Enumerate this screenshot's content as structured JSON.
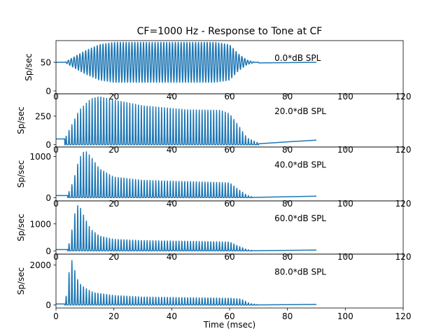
{
  "chart_data": {
    "type": "line",
    "title": "CF=1000 Hz - Response to Tone at CF",
    "xlabel": "Time (msec)",
    "ylabel": "Sp/sec",
    "xlim": [
      0,
      120
    ],
    "x_ticks": [
      0,
      20,
      40,
      60,
      80,
      100,
      120
    ],
    "series_color": "#1f77b4",
    "tone_frequency_hz": 1000,
    "panels": [
      {
        "annotation": "0.0*dB SPL",
        "ylim": [
          -5,
          88
        ],
        "y_ticks": [
          0,
          50
        ],
        "spont": 50,
        "mod": [
          {
            "t": 3,
            "v": 0
          },
          {
            "t": 5,
            "v": 6
          },
          {
            "t": 10,
            "v": 20
          },
          {
            "t": 15,
            "v": 31
          },
          {
            "t": 20,
            "v": 35
          },
          {
            "t": 55,
            "v": 35
          },
          {
            "t": 60,
            "v": 31
          },
          {
            "t": 63,
            "v": 15
          },
          {
            "t": 66,
            "v": 4
          },
          {
            "t": 69,
            "v": 0
          }
        ],
        "tail": [
          {
            "t": 70,
            "v": 49
          },
          {
            "t": 90,
            "v": 50
          }
        ]
      },
      {
        "annotation": "20.0*dB SPL",
        "ylim": [
          -20,
          445
        ],
        "y_ticks": [
          0,
          250
        ],
        "spont": 50,
        "env": [
          {
            "t": 3,
            "v": 50
          },
          {
            "t": 5,
            "v": 150
          },
          {
            "t": 8,
            "v": 300
          },
          {
            "t": 12,
            "v": 400
          },
          {
            "t": 15,
            "v": 420
          },
          {
            "t": 20,
            "v": 390
          },
          {
            "t": 30,
            "v": 340
          },
          {
            "t": 45,
            "v": 305
          },
          {
            "t": 57,
            "v": 300
          },
          {
            "t": 60,
            "v": 270
          },
          {
            "t": 63,
            "v": 170
          },
          {
            "t": 66,
            "v": 60
          },
          {
            "t": 70,
            "v": 15
          }
        ],
        "tail": [
          {
            "t": 70,
            "v": 8
          },
          {
            "t": 80,
            "v": 25
          },
          {
            "t": 90,
            "v": 40
          }
        ]
      },
      {
        "annotation": "40.0*dB SPL",
        "ylim": [
          -80,
          1230
        ],
        "y_ticks": [
          0,
          1000
        ],
        "spont": 50,
        "env": [
          {
            "t": 4,
            "v": 60
          },
          {
            "t": 6,
            "v": 400
          },
          {
            "t": 8,
            "v": 950
          },
          {
            "t": 10,
            "v": 1150
          },
          {
            "t": 12,
            "v": 1000
          },
          {
            "t": 15,
            "v": 700
          },
          {
            "t": 20,
            "v": 500
          },
          {
            "t": 30,
            "v": 420
          },
          {
            "t": 50,
            "v": 380
          },
          {
            "t": 60,
            "v": 360
          },
          {
            "t": 63,
            "v": 200
          },
          {
            "t": 66,
            "v": 60
          },
          {
            "t": 68,
            "v": 15
          }
        ],
        "tail": [
          {
            "t": 68,
            "v": 5
          },
          {
            "t": 90,
            "v": 35
          }
        ]
      },
      {
        "annotation": "60.0*dB SPL",
        "ylim": [
          -120,
          1850
        ],
        "y_ticks": [
          0,
          1000
        ],
        "spont": 50,
        "env": [
          {
            "t": 4,
            "v": 80
          },
          {
            "t": 5,
            "v": 450
          },
          {
            "t": 6,
            "v": 1100
          },
          {
            "t": 7,
            "v": 1650
          },
          {
            "t": 8,
            "v": 1700
          },
          {
            "t": 10,
            "v": 1200
          },
          {
            "t": 12,
            "v": 800
          },
          {
            "t": 15,
            "v": 550
          },
          {
            "t": 20,
            "v": 430
          },
          {
            "t": 30,
            "v": 380
          },
          {
            "t": 50,
            "v": 350
          },
          {
            "t": 60,
            "v": 330
          },
          {
            "t": 63,
            "v": 180
          },
          {
            "t": 66,
            "v": 50
          },
          {
            "t": 68,
            "v": 15
          }
        ],
        "tail": [
          {
            "t": 68,
            "v": 5
          },
          {
            "t": 90,
            "v": 30
          }
        ]
      },
      {
        "annotation": "80.0*dB SPL",
        "ylim": [
          -150,
          2550
        ],
        "y_ticks": [
          0,
          2000
        ],
        "spont": 50,
        "env": [
          {
            "t": 3,
            "v": 80
          },
          {
            "t": 4,
            "v": 800
          },
          {
            "t": 5,
            "v": 2450
          },
          {
            "t": 6,
            "v": 2000
          },
          {
            "t": 7,
            "v": 1450
          },
          {
            "t": 8,
            "v": 1100
          },
          {
            "t": 10,
            "v": 850
          },
          {
            "t": 13,
            "v": 620
          },
          {
            "t": 20,
            "v": 480
          },
          {
            "t": 30,
            "v": 400
          },
          {
            "t": 50,
            "v": 360
          },
          {
            "t": 60,
            "v": 340
          },
          {
            "t": 64,
            "v": 300
          },
          {
            "t": 67,
            "v": 80
          },
          {
            "t": 70,
            "v": 15
          }
        ],
        "tail": [
          {
            "t": 70,
            "v": 5
          },
          {
            "t": 90,
            "v": 30
          }
        ]
      }
    ]
  }
}
